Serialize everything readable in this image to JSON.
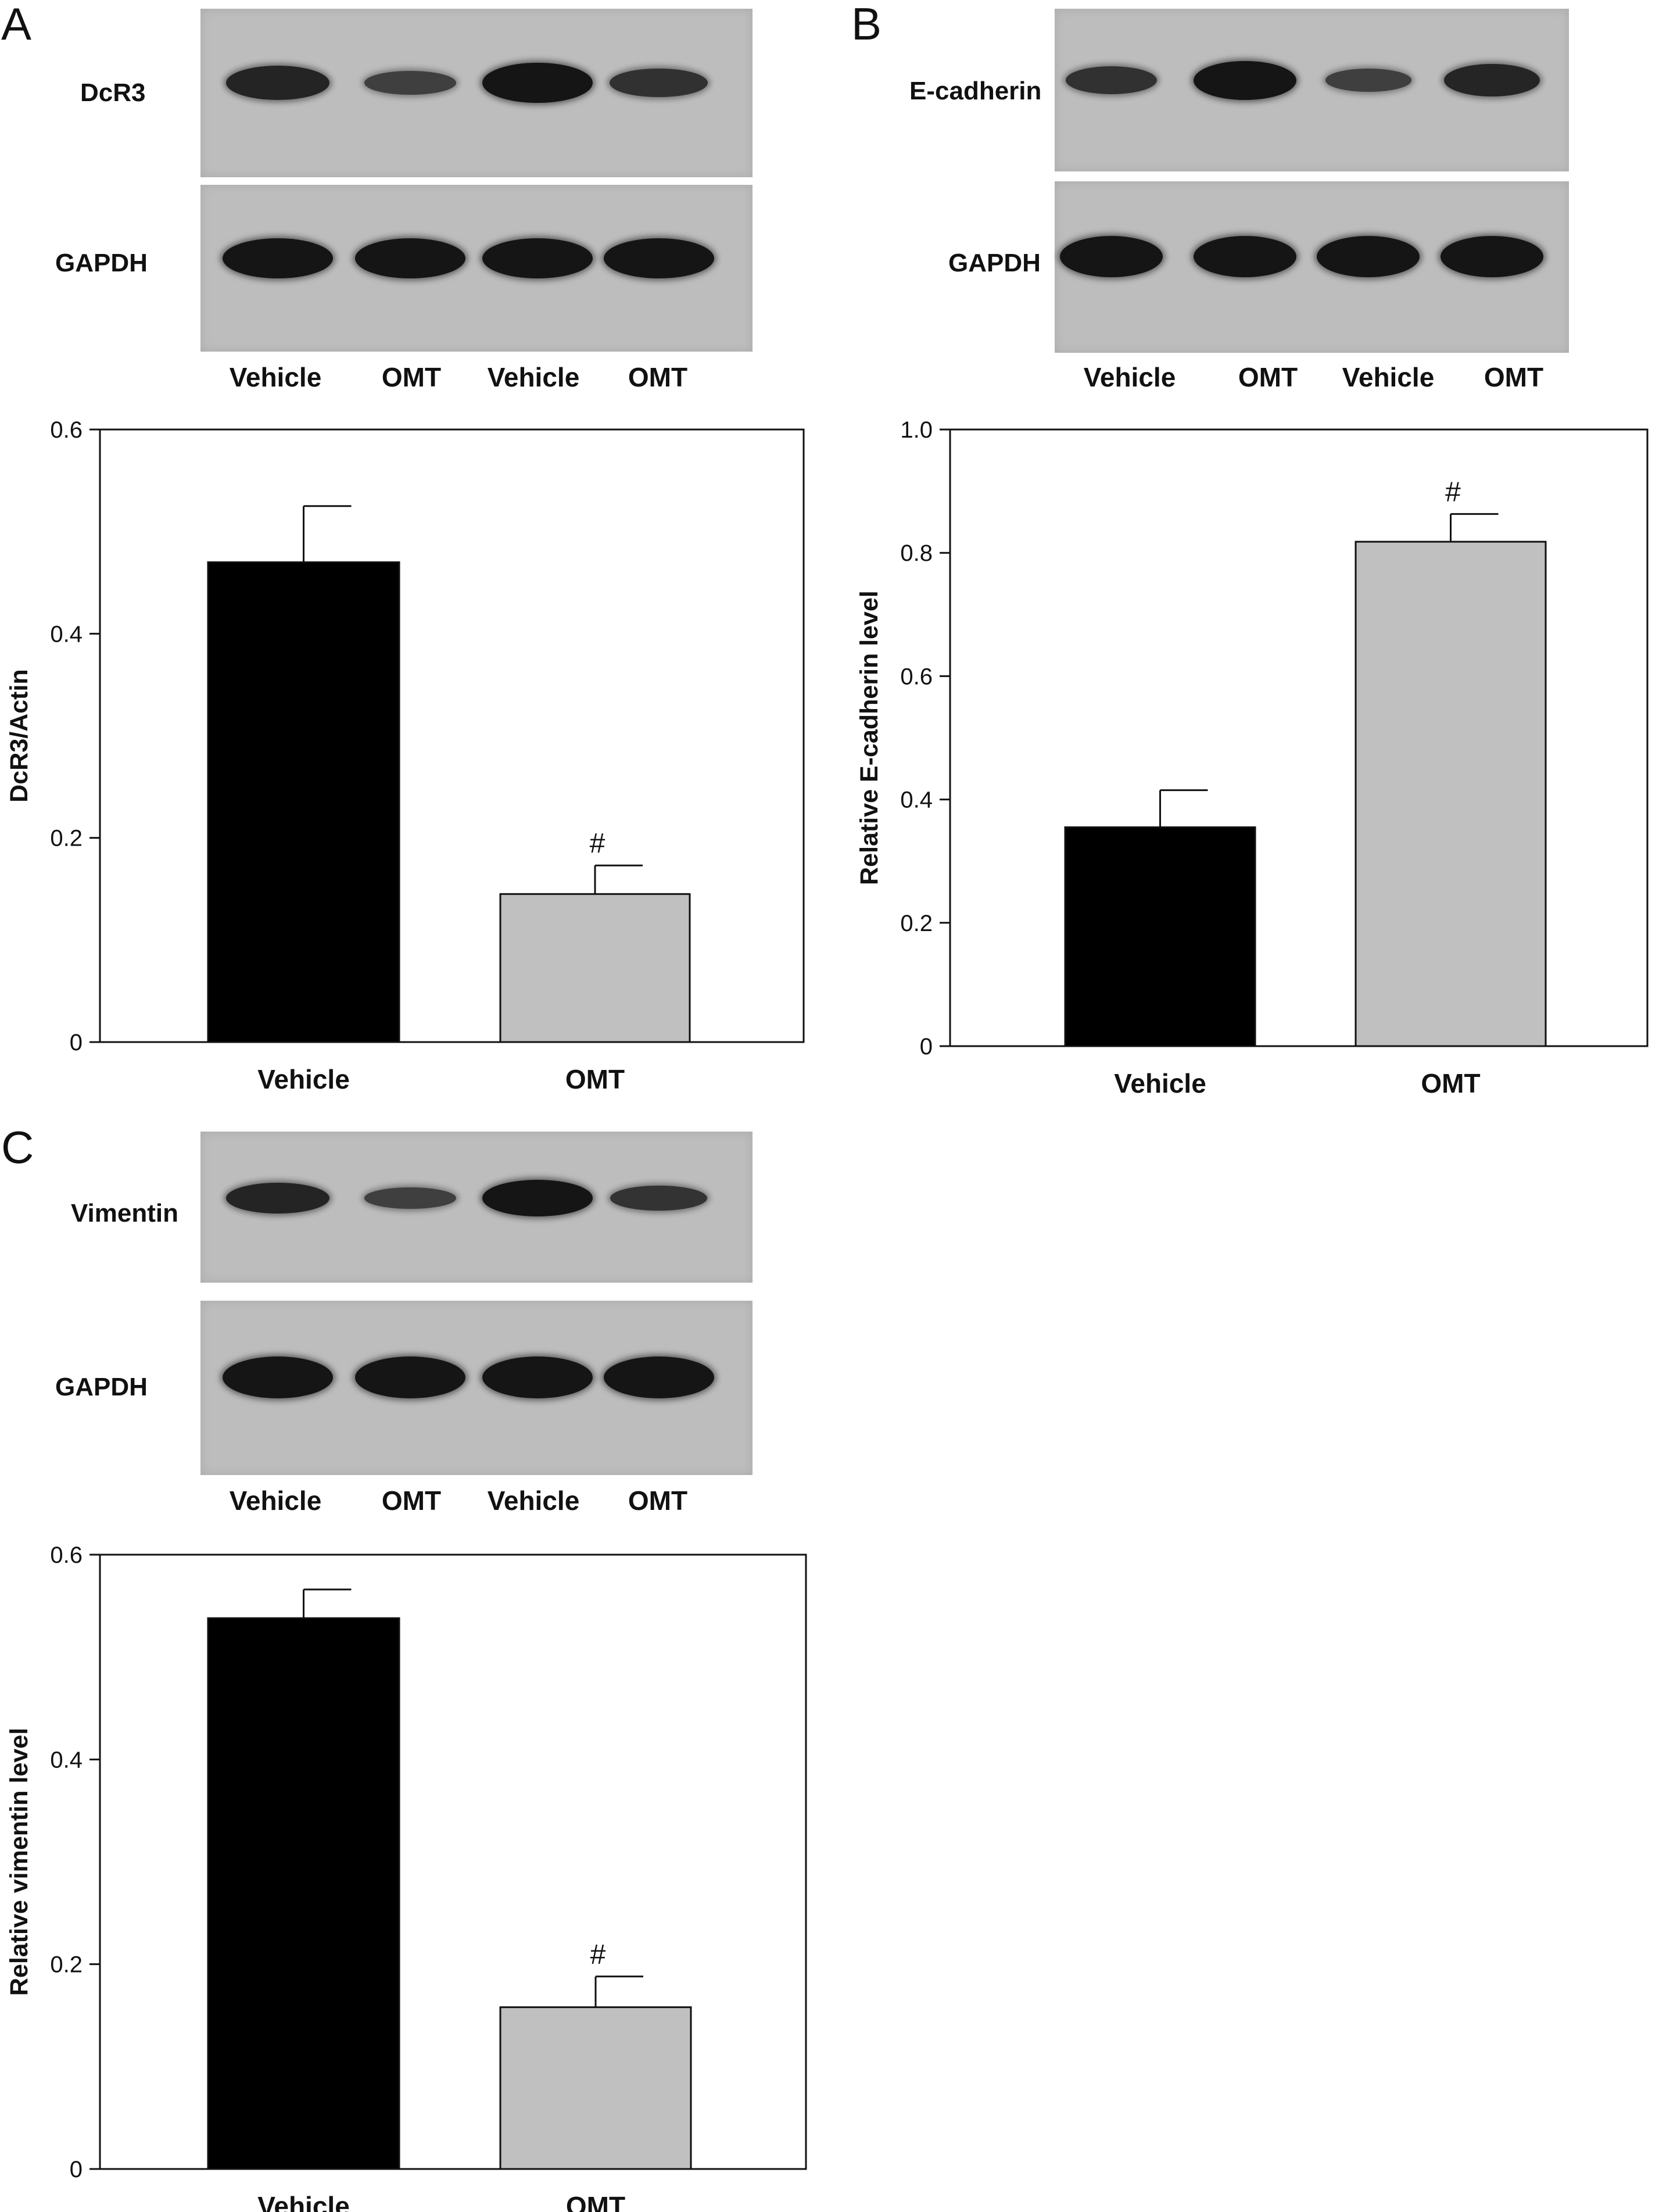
{
  "panels": [
    {
      "letter": "A",
      "blots": [
        {
          "protein": "DcR3",
          "intensities": [
            0.8,
            0.45,
            1.0,
            0.62
          ]
        },
        {
          "protein": "GAPDH",
          "intensities": [
            1.0,
            1.0,
            1.0,
            1.0
          ]
        }
      ],
      "lanes": [
        "Vehicle",
        "OMT",
        "Vehicle",
        "OMT"
      ]
    },
    {
      "letter": "B",
      "blots": [
        {
          "protein": "E-cadherin",
          "intensities": [
            0.62,
            1.0,
            0.45,
            0.78
          ]
        },
        {
          "protein": "GAPDH",
          "intensities": [
            1.0,
            1.0,
            1.0,
            1.0
          ]
        }
      ],
      "lanes": [
        "Vehicle",
        "OMT",
        "Vehicle",
        "OMT"
      ]
    },
    {
      "letter": "C",
      "blots": [
        {
          "protein": "Vimentin",
          "intensities": [
            0.8,
            0.45,
            1.0,
            0.6
          ]
        },
        {
          "protein": "GAPDH",
          "intensities": [
            1.0,
            1.0,
            1.0,
            1.0
          ]
        }
      ],
      "lanes": [
        "Vehicle",
        "OMT",
        "Vehicle",
        "OMT"
      ]
    }
  ],
  "chart_data": [
    {
      "type": "bar",
      "panel": "A",
      "categories": [
        "Vehicle",
        "OMT"
      ],
      "values": [
        0.47,
        0.145
      ],
      "errors": [
        0.055,
        0.028
      ],
      "significance": [
        "",
        "#"
      ],
      "colors": [
        "#000000",
        "#c0c0c0"
      ],
      "title": "",
      "xlabel": "",
      "ylabel": "DcR3/Actin",
      "ylim": [
        0,
        0.6
      ],
      "yticks": [
        0,
        0.2,
        0.4,
        0.6
      ],
      "ytick_labels": [
        "0",
        "0.2",
        "0.4",
        "0.6"
      ]
    },
    {
      "type": "bar",
      "panel": "B",
      "categories": [
        "Vehicle",
        "OMT"
      ],
      "values": [
        0.355,
        0.818
      ],
      "errors": [
        0.06,
        0.045
      ],
      "significance": [
        "",
        "#"
      ],
      "colors": [
        "#000000",
        "#c0c0c0"
      ],
      "title": "",
      "xlabel": "",
      "ylabel": "Relative E-cadherin level",
      "ylim": [
        0,
        1.0
      ],
      "yticks": [
        0,
        0.2,
        0.4,
        0.6,
        0.8,
        1.0
      ],
      "ytick_labels": [
        "0",
        "0.2",
        "0.4",
        "0.6",
        "0.8",
        "1.0"
      ]
    },
    {
      "type": "bar",
      "panel": "C",
      "categories": [
        "Vehicle",
        "OMT"
      ],
      "values": [
        0.538,
        0.158
      ],
      "errors": [
        0.028,
        0.03
      ],
      "significance": [
        "",
        "#"
      ],
      "colors": [
        "#000000",
        "#c0c0c0"
      ],
      "title": "",
      "xlabel": "",
      "ylabel": "Relative vimentin level",
      "ylim": [
        0,
        0.6
      ],
      "yticks": [
        0,
        0.2,
        0.4,
        0.6
      ],
      "ytick_labels": [
        "0",
        "0.2",
        "0.4",
        "0.6"
      ]
    }
  ]
}
